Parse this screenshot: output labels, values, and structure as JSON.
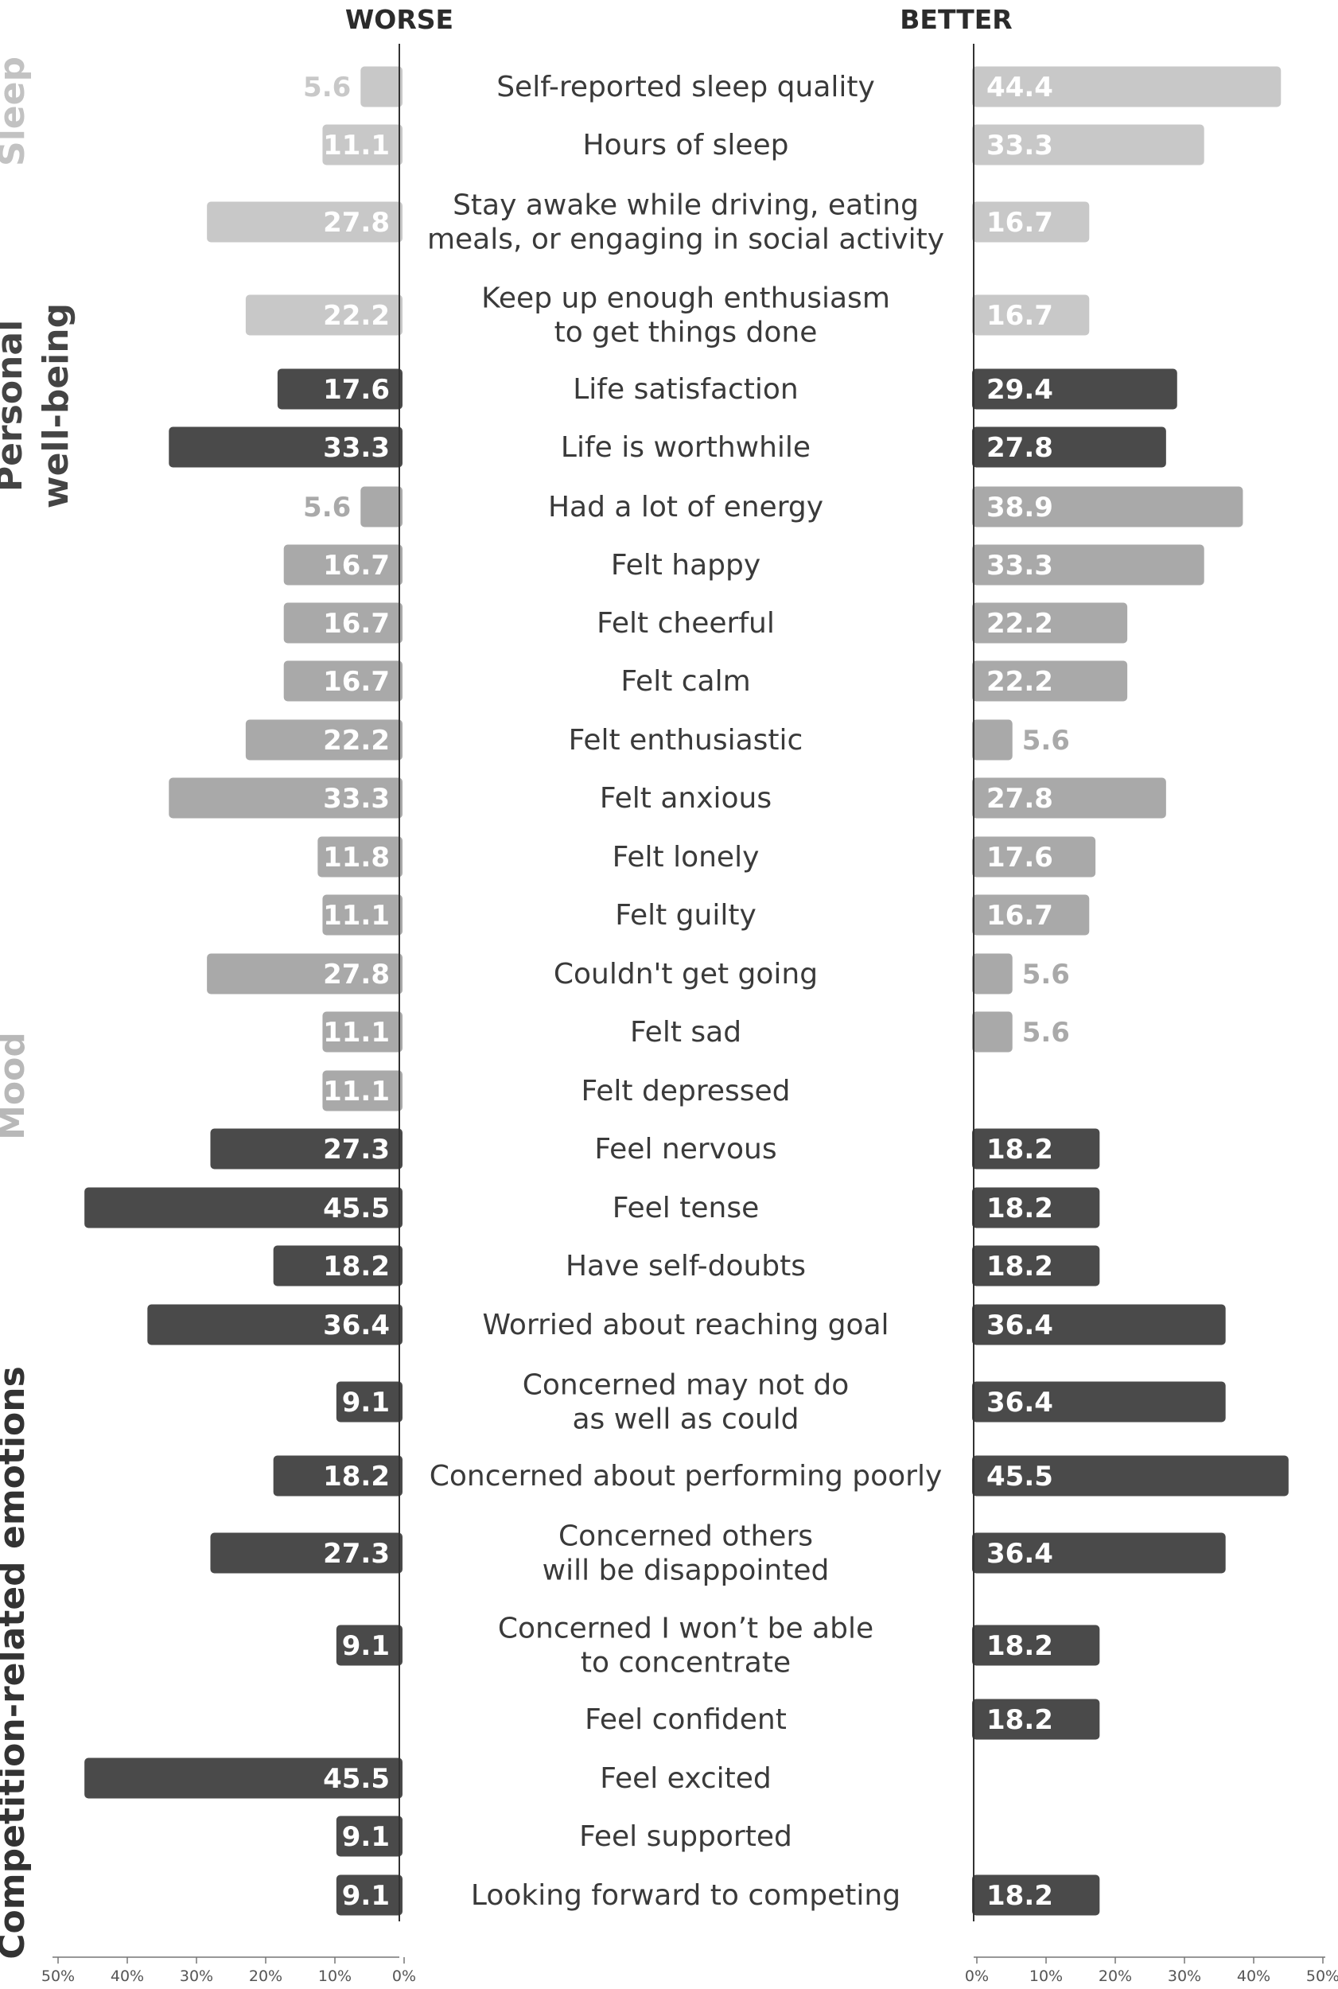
{
  "chart_data": {
    "type": "bar",
    "headers": {
      "left": "WORSE",
      "right": "BETTER"
    },
    "x_ticks_left": [
      "50%",
      "40%",
      "30%",
      "20%",
      "10%",
      "0%"
    ],
    "x_ticks_right": [
      "0%",
      "10%",
      "20%",
      "30%",
      "40%",
      "50%"
    ],
    "xlim": [
      0,
      50
    ],
    "groups": [
      {
        "label": "Sleep",
        "color": "#c2c2c2",
        "lines": [
          "Sleep"
        ]
      },
      {
        "label": "Personal well-being",
        "color": "#444444",
        "lines": [
          "Personal",
          "well-being"
        ]
      },
      {
        "label": "Mood",
        "color": "#b8b8b8",
        "lines": [
          "Mood"
        ]
      },
      {
        "label": "Competition-related emotions",
        "color": "#333333",
        "lines": [
          "Competition-related emotions"
        ]
      }
    ],
    "colors": {
      "light": "#c8c8c8",
      "medium": "#a9a9a9",
      "dark": "#4a4a4a"
    },
    "categories": [
      {
        "label": [
          "Self-reported sleep quality"
        ],
        "worse": 5.6,
        "better": 44.4,
        "tone": "light"
      },
      {
        "label": [
          "Hours of sleep"
        ],
        "worse": 11.1,
        "better": 33.3,
        "tone": "light"
      },
      {
        "label": [
          "Stay awake while driving, eating",
          "meals, or engaging in social activity"
        ],
        "worse": 27.8,
        "better": 16.7,
        "tone": "light"
      },
      {
        "label": [
          "Keep up enough enthusiasm",
          "to get things done"
        ],
        "worse": 22.2,
        "better": 16.7,
        "tone": "light"
      },
      {
        "label": [
          "Life satisfaction"
        ],
        "worse": 17.6,
        "better": 29.4,
        "tone": "dark"
      },
      {
        "label": [
          "Life is worthwhile"
        ],
        "worse": 33.3,
        "better": 27.8,
        "tone": "dark"
      },
      {
        "label": [
          "Had a lot of energy"
        ],
        "worse": 5.6,
        "better": 38.9,
        "tone": "medium"
      },
      {
        "label": [
          "Felt happy"
        ],
        "worse": 16.7,
        "better": 33.3,
        "tone": "medium"
      },
      {
        "label": [
          "Felt cheerful"
        ],
        "worse": 16.7,
        "better": 22.2,
        "tone": "medium"
      },
      {
        "label": [
          "Felt calm"
        ],
        "worse": 16.7,
        "better": 22.2,
        "tone": "medium"
      },
      {
        "label": [
          "Felt enthusiastic"
        ],
        "worse": 22.2,
        "better": 5.6,
        "tone": "medium"
      },
      {
        "label": [
          "Felt anxious"
        ],
        "worse": 33.3,
        "better": 27.8,
        "tone": "medium"
      },
      {
        "label": [
          "Felt lonely"
        ],
        "worse": 11.8,
        "better": 17.6,
        "tone": "medium"
      },
      {
        "label": [
          "Felt guilty"
        ],
        "worse": 11.1,
        "better": 16.7,
        "tone": "medium"
      },
      {
        "label": [
          "Couldn't get going"
        ],
        "worse": 27.8,
        "better": 5.6,
        "tone": "medium"
      },
      {
        "label": [
          "Felt sad"
        ],
        "worse": 11.1,
        "better": 5.6,
        "tone": "medium"
      },
      {
        "label": [
          "Felt depressed"
        ],
        "worse": 11.1,
        "better": null,
        "tone": "medium"
      },
      {
        "label": [
          "Feel nervous"
        ],
        "worse": 27.3,
        "better": 18.2,
        "tone": "dark"
      },
      {
        "label": [
          "Feel tense"
        ],
        "worse": 45.5,
        "better": 18.2,
        "tone": "dark"
      },
      {
        "label": [
          "Have self-doubts"
        ],
        "worse": 18.2,
        "better": 18.2,
        "tone": "dark"
      },
      {
        "label": [
          "Worried about reaching goal"
        ],
        "worse": 36.4,
        "better": 36.4,
        "tone": "dark"
      },
      {
        "label": [
          "Concerned may not do",
          "as well as could"
        ],
        "worse": 9.1,
        "better": 36.4,
        "tone": "dark"
      },
      {
        "label": [
          "Concerned about performing poorly"
        ],
        "worse": 18.2,
        "better": 45.5,
        "tone": "dark"
      },
      {
        "label": [
          "Concerned others",
          "will be disappointed"
        ],
        "worse": 27.3,
        "better": 36.4,
        "tone": "dark"
      },
      {
        "label": [
          "Concerned I won’t be able",
          "to concentrate"
        ],
        "worse": 9.1,
        "better": 18.2,
        "tone": "dark"
      },
      {
        "label": [
          "Feel confident"
        ],
        "worse": null,
        "better": 18.2,
        "tone": "dark"
      },
      {
        "label": [
          "Feel excited"
        ],
        "worse": 45.5,
        "better": null,
        "tone": "dark"
      },
      {
        "label": [
          "Feel supported"
        ],
        "worse": 9.1,
        "better": null,
        "tone": "dark"
      },
      {
        "label": [
          "Looking forward to competing"
        ],
        "worse": 9.1,
        "better": 18.2,
        "tone": "dark"
      }
    ]
  }
}
